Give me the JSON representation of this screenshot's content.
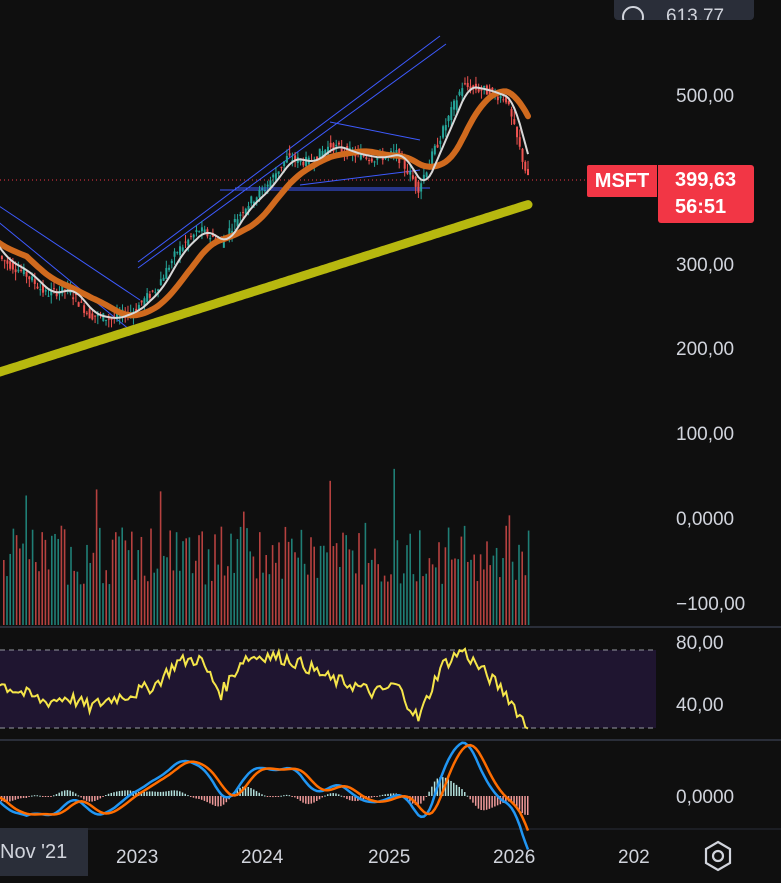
{
  "header": {
    "top_value": "613,77"
  },
  "ticker": {
    "symbol": "MSFT",
    "price": "399,63",
    "countdown": "56:51"
  },
  "price_axis": [
    "500,00",
    "300,00",
    "200,00",
    "100,00",
    "0,0000",
    "−100,00"
  ],
  "rsi_axis": [
    "80,00",
    "40,00"
  ],
  "macd_axis": [
    "0,0000"
  ],
  "time_axis": [
    "Nov '21",
    "2023",
    "2024",
    "2025",
    "2026",
    "202"
  ],
  "colors": {
    "up": "#26a69a",
    "down": "#ef5350",
    "ma_short": "#d8d8d8",
    "ma_mid": "#d06a1e",
    "ma_long": "#b7b80f",
    "rsi": "#f5e54a",
    "macd": "#2196f3",
    "signal": "#ff6d00",
    "badge": "#f23645",
    "trend": "#3d5afe"
  },
  "icons": [
    "settings-gear-icon",
    "info-circle-icon"
  ],
  "chart_data": {
    "type": "line",
    "series": [
      {
        "name": "MSFT",
        "x": [
          "2021-11",
          "2022-01",
          "2022-03",
          "2022-05",
          "2022-07",
          "2022-09",
          "2022-11",
          "2023-01",
          "2023-03",
          "2023-05",
          "2023-07",
          "2023-09",
          "2023-11",
          "2024-01",
          "2024-03",
          "2024-05",
          "2024-07",
          "2024-09",
          "2024-11",
          "2025-01",
          "2025-03",
          "2025-05",
          "2025-07",
          "2025-09",
          "2025-11",
          "2026-01"
        ],
        "values": [
          340,
          305,
          290,
          265,
          270,
          240,
          235,
          245,
          270,
          315,
          340,
          325,
          365,
          390,
          425,
          420,
          440,
          430,
          425,
          430,
          390,
          450,
          510,
          505,
          495,
          400
        ]
      }
    ],
    "rsi": {
      "values": [
        65,
        55,
        50,
        45,
        48,
        42,
        47,
        50,
        55,
        68,
        70,
        50,
        70,
        72,
        70,
        65,
        58,
        55,
        50,
        55,
        35,
        65,
        75,
        62,
        50,
        30
      ]
    },
    "ylim": [
      -100,
      600
    ]
  }
}
